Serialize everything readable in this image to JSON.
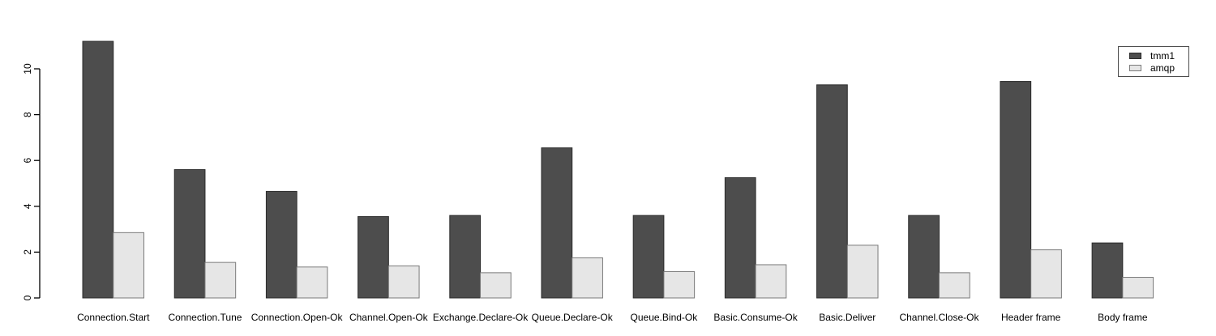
{
  "chart_data": {
    "type": "bar",
    "title": "",
    "xlabel": "",
    "ylabel": "",
    "categories": [
      "Connection.Start",
      "Connection.Tune",
      "Connection.Open-Ok",
      "Channel.Open-Ok",
      "Exchange.Declare-Ok",
      "Queue.Declare-Ok",
      "Queue.Bind-Ok",
      "Basic.Consume-Ok",
      "Basic.Deliver",
      "Channel.Close-Ok",
      "Header frame",
      "Body frame"
    ],
    "series": [
      {
        "name": "tmm1",
        "color": "#4d4d4d",
        "border": "#2b2b2b",
        "values": [
          11.2,
          5.6,
          4.65,
          3.55,
          3.6,
          6.55,
          3.6,
          5.25,
          9.3,
          3.6,
          9.45,
          2.4
        ]
      },
      {
        "name": "amqp",
        "color": "#e6e6e6",
        "border": "#7a7a7a",
        "values": [
          2.85,
          1.55,
          1.35,
          1.4,
          1.1,
          1.75,
          1.15,
          1.45,
          2.3,
          1.1,
          2.1,
          0.9
        ]
      }
    ],
    "yticks": [
      0,
      2,
      4,
      6,
      8,
      10
    ],
    "ylim": [
      0,
      11.3
    ],
    "grid": false,
    "legend_position": "top-right",
    "background": "#ffffff",
    "axis_color": "#000000",
    "text_color": "#000000"
  }
}
